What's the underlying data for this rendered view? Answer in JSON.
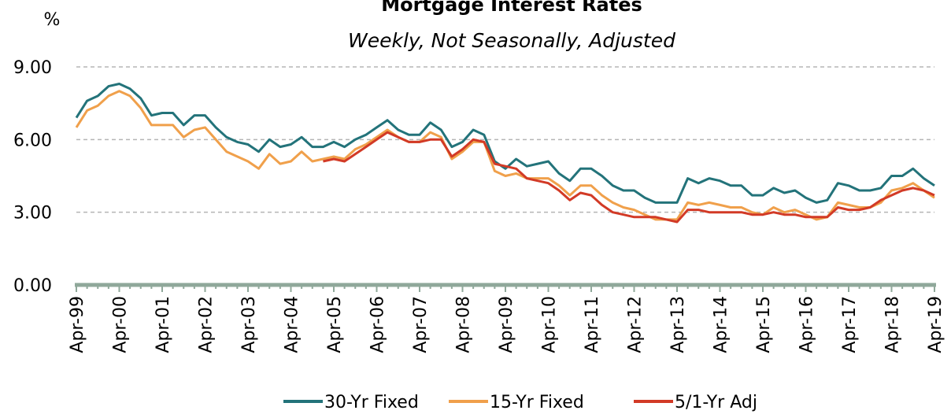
{
  "chart_data": {
    "type": "line",
    "title": "Mortgage Interest Rates",
    "subtitle": "Weekly, Not Seasonally, Adjusted",
    "y_label": "%",
    "categories": [
      "Apr-99",
      null,
      null,
      null,
      "Apr-00",
      null,
      null,
      null,
      "Apr-01",
      null,
      null,
      null,
      "Apr-02",
      null,
      null,
      null,
      "Apr-03",
      null,
      null,
      null,
      "Apr-04",
      null,
      null,
      null,
      "Apr-05",
      null,
      null,
      null,
      "Apr-06",
      null,
      null,
      null,
      "Apr-07",
      null,
      null,
      null,
      "Apr-08",
      null,
      null,
      null,
      "Apr-09",
      null,
      null,
      null,
      "Apr-10",
      null,
      null,
      null,
      "Apr-11",
      null,
      null,
      null,
      "Apr-12",
      null,
      null,
      null,
      "Apr-13",
      null,
      null,
      null,
      "Apr-14",
      null,
      null,
      null,
      "Apr-15",
      null,
      null,
      null,
      "Apr-16",
      null,
      null,
      null,
      "Apr-17",
      null,
      null,
      null,
      "Apr-18",
      null,
      null,
      null,
      "Apr-19"
    ],
    "series": [
      {
        "name": "30-Yr Fixed",
        "color": "#23737a",
        "values": [
          6.9,
          7.6,
          7.8,
          8.2,
          8.3,
          8.1,
          7.7,
          7.0,
          7.1,
          7.1,
          6.6,
          7.0,
          7.0,
          6.5,
          6.1,
          5.9,
          5.8,
          5.5,
          6.0,
          5.7,
          5.8,
          6.1,
          5.7,
          5.7,
          5.9,
          5.7,
          6.0,
          6.2,
          6.5,
          6.8,
          6.4,
          6.2,
          6.2,
          6.7,
          6.4,
          5.7,
          5.9,
          6.4,
          6.2,
          5.1,
          4.8,
          5.2,
          4.9,
          5.0,
          5.1,
          4.6,
          4.3,
          4.8,
          4.8,
          4.5,
          4.1,
          3.9,
          3.9,
          3.6,
          3.4,
          3.4,
          3.4,
          4.4,
          4.2,
          4.4,
          4.3,
          4.1,
          4.1,
          3.7,
          3.7,
          4.0,
          3.8,
          3.9,
          3.6,
          3.4,
          3.5,
          4.2,
          4.1,
          3.9,
          3.9,
          4.0,
          4.5,
          4.5,
          4.8,
          4.4,
          4.1
        ]
      },
      {
        "name": "15-Yr Fixed",
        "color": "#f0a04b",
        "values": [
          6.5,
          7.2,
          7.4,
          7.8,
          8.0,
          7.8,
          7.3,
          6.6,
          6.6,
          6.6,
          6.1,
          6.4,
          6.5,
          6.0,
          5.5,
          5.3,
          5.1,
          4.8,
          5.4,
          5.0,
          5.1,
          5.5,
          5.1,
          5.2,
          5.3,
          5.2,
          5.6,
          5.8,
          6.1,
          6.4,
          6.1,
          5.9,
          5.9,
          6.3,
          6.1,
          5.2,
          5.5,
          5.9,
          5.9,
          4.7,
          4.5,
          4.6,
          4.4,
          4.4,
          4.4,
          4.1,
          3.7,
          4.1,
          4.1,
          3.7,
          3.4,
          3.2,
          3.1,
          2.9,
          2.7,
          2.7,
          2.7,
          3.4,
          3.3,
          3.4,
          3.3,
          3.2,
          3.2,
          3.0,
          2.9,
          3.2,
          3.0,
          3.1,
          2.9,
          2.7,
          2.8,
          3.4,
          3.3,
          3.2,
          3.2,
          3.4,
          3.9,
          4.0,
          4.2,
          3.9,
          3.6
        ]
      },
      {
        "name": "5/1-Yr Adj",
        "color": "#d23a26",
        "values": [
          null,
          null,
          null,
          null,
          null,
          null,
          null,
          null,
          null,
          null,
          null,
          null,
          null,
          null,
          null,
          null,
          null,
          null,
          null,
          null,
          null,
          null,
          null,
          5.1,
          5.2,
          5.1,
          5.4,
          5.7,
          6.0,
          6.3,
          6.1,
          5.9,
          5.9,
          6.0,
          6.0,
          5.3,
          5.6,
          6.0,
          5.9,
          5.0,
          4.9,
          4.8,
          4.4,
          4.3,
          4.2,
          3.9,
          3.5,
          3.8,
          3.7,
          3.3,
          3.0,
          2.9,
          2.8,
          2.8,
          2.8,
          2.7,
          2.6,
          3.1,
          3.1,
          3.0,
          3.0,
          3.0,
          3.0,
          2.9,
          2.9,
          3.0,
          2.9,
          2.9,
          2.8,
          2.8,
          2.8,
          3.2,
          3.1,
          3.1,
          3.2,
          3.5,
          3.7,
          3.9,
          4.0,
          3.9,
          3.7
        ]
      }
    ],
    "ylim": [
      0,
      9
    ],
    "yticks": [
      {
        "value": 0,
        "label": "0.00"
      },
      {
        "value": 3,
        "label": "3.00"
      },
      {
        "value": 6,
        "label": "6.00"
      },
      {
        "value": 9,
        "label": "9.00"
      }
    ],
    "grid": true,
    "legend": "bottom"
  }
}
